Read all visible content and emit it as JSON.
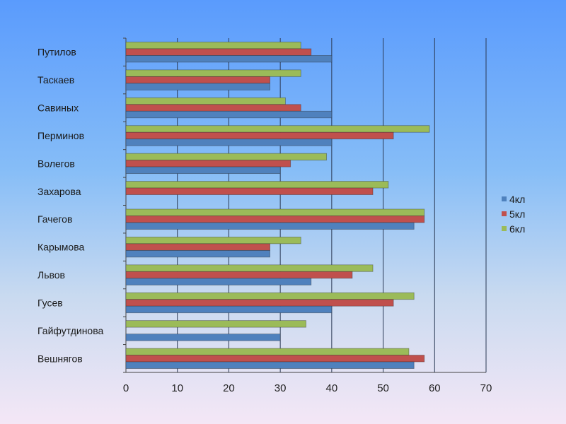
{
  "chart_data": {
    "type": "bar",
    "orientation": "horizontal",
    "title": "",
    "xlabel": "",
    "ylabel": "",
    "xlim": [
      0,
      70
    ],
    "xticks": [
      "0",
      "10",
      "20",
      "30",
      "40",
      "50",
      "60",
      "70"
    ],
    "grid": true,
    "legend_position": "right",
    "categories": [
      "Путилов",
      "Таскаев",
      "Савиных",
      "Перминов",
      "Волегов",
      "Захарова",
      "Гачегов",
      "Карымова",
      "Львов",
      "Гусев",
      "Гайфутдинова",
      "Вешнягов"
    ],
    "series": [
      {
        "name": "4кл",
        "color": "#4f81bd",
        "values": [
          40,
          28,
          40,
          40,
          30,
          0,
          56,
          28,
          36,
          40,
          30,
          56
        ]
      },
      {
        "name": "5кл",
        "color": "#c0504d",
        "values": [
          36,
          28,
          34,
          52,
          32,
          48,
          58,
          28,
          44,
          52,
          0,
          58
        ]
      },
      {
        "name": "6кл",
        "color": "#9bbb59",
        "values": [
          34,
          34,
          31,
          59,
          39,
          51,
          58,
          34,
          48,
          56,
          35,
          55
        ]
      }
    ]
  }
}
